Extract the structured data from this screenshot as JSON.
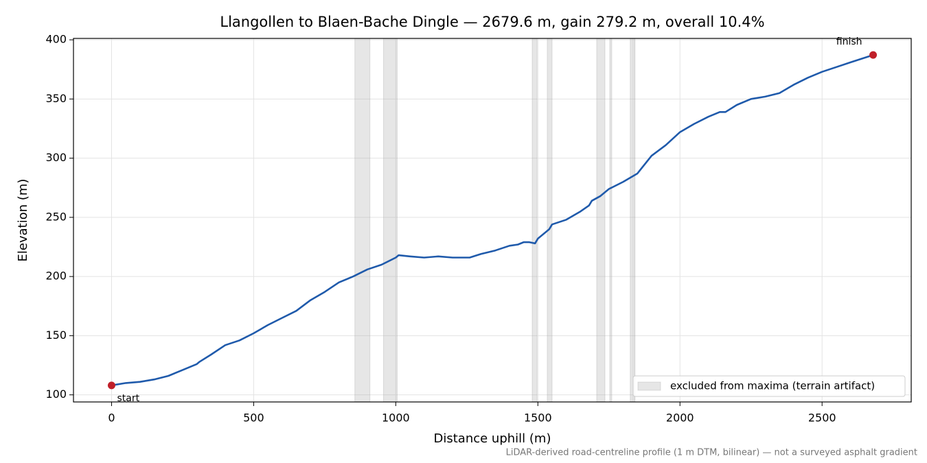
{
  "chart_data": {
    "type": "line",
    "title": "Llangollen to Blaen-Bache Dingle — 2679.6 m, gain 279.2 m, overall 10.4%",
    "xlabel": "Distance uphill (m)",
    "ylabel": "Elevation (m)",
    "note": "LiDAR-derived road-centreline profile (1 m DTM, bilinear) — not a surveyed asphalt gradient",
    "x": [
      0,
      50,
      100,
      150,
      200,
      250,
      300,
      310,
      350,
      400,
      450,
      500,
      550,
      600,
      650,
      700,
      750,
      800,
      850,
      900,
      950,
      1000,
      1010,
      1050,
      1100,
      1150,
      1200,
      1260,
      1300,
      1350,
      1400,
      1430,
      1450,
      1470,
      1490,
      1500,
      1520,
      1540,
      1550,
      1600,
      1650,
      1680,
      1690,
      1720,
      1750,
      1800,
      1850,
      1860,
      1900,
      1950,
      2000,
      2050,
      2100,
      2140,
      2160,
      2200,
      2250,
      2300,
      2350,
      2400,
      2450,
      2500,
      2550,
      2600,
      2679.6
    ],
    "values": [
      108,
      110,
      111,
      113,
      116,
      121,
      126,
      128,
      134,
      142,
      146,
      152,
      159,
      165,
      171,
      180,
      187,
      195,
      200,
      206,
      210,
      216,
      218,
      217,
      216,
      217,
      216,
      216,
      219,
      222,
      226,
      227,
      229,
      229,
      228,
      232,
      236,
      240,
      244,
      248,
      255,
      260,
      264,
      268,
      274,
      280,
      287,
      290,
      302,
      311,
      322,
      329,
      335,
      339,
      339,
      345,
      350,
      352,
      355,
      362,
      368,
      373,
      377,
      381,
      387.2
    ],
    "color": "#1f5aab",
    "excluded": {
      "name": "excluded from maxima (terrain artifact)",
      "color": "#a6a6a6",
      "ranges": [
        [
          856,
          909
        ],
        [
          957,
          1005
        ],
        [
          1480,
          1497
        ],
        [
          1533,
          1550
        ],
        [
          1707,
          1736
        ],
        [
          1753,
          1760
        ],
        [
          1825,
          1835
        ],
        [
          1838,
          1842
        ]
      ]
    },
    "annotations": [
      {
        "text": "start",
        "x": 0,
        "y": 108
      },
      {
        "text": "finish",
        "x": 2679.6,
        "y": 387.2
      }
    ],
    "marker_color": "#c0202a",
    "xlim": [
      -134,
      2813.6
    ],
    "ylim": [
      94.0,
      401.2
    ],
    "xticks": [
      0,
      500,
      1000,
      1500,
      2000,
      2500
    ],
    "yticks": [
      100,
      150,
      200,
      250,
      300,
      350,
      400
    ],
    "grid": true,
    "legend": "lower right"
  }
}
